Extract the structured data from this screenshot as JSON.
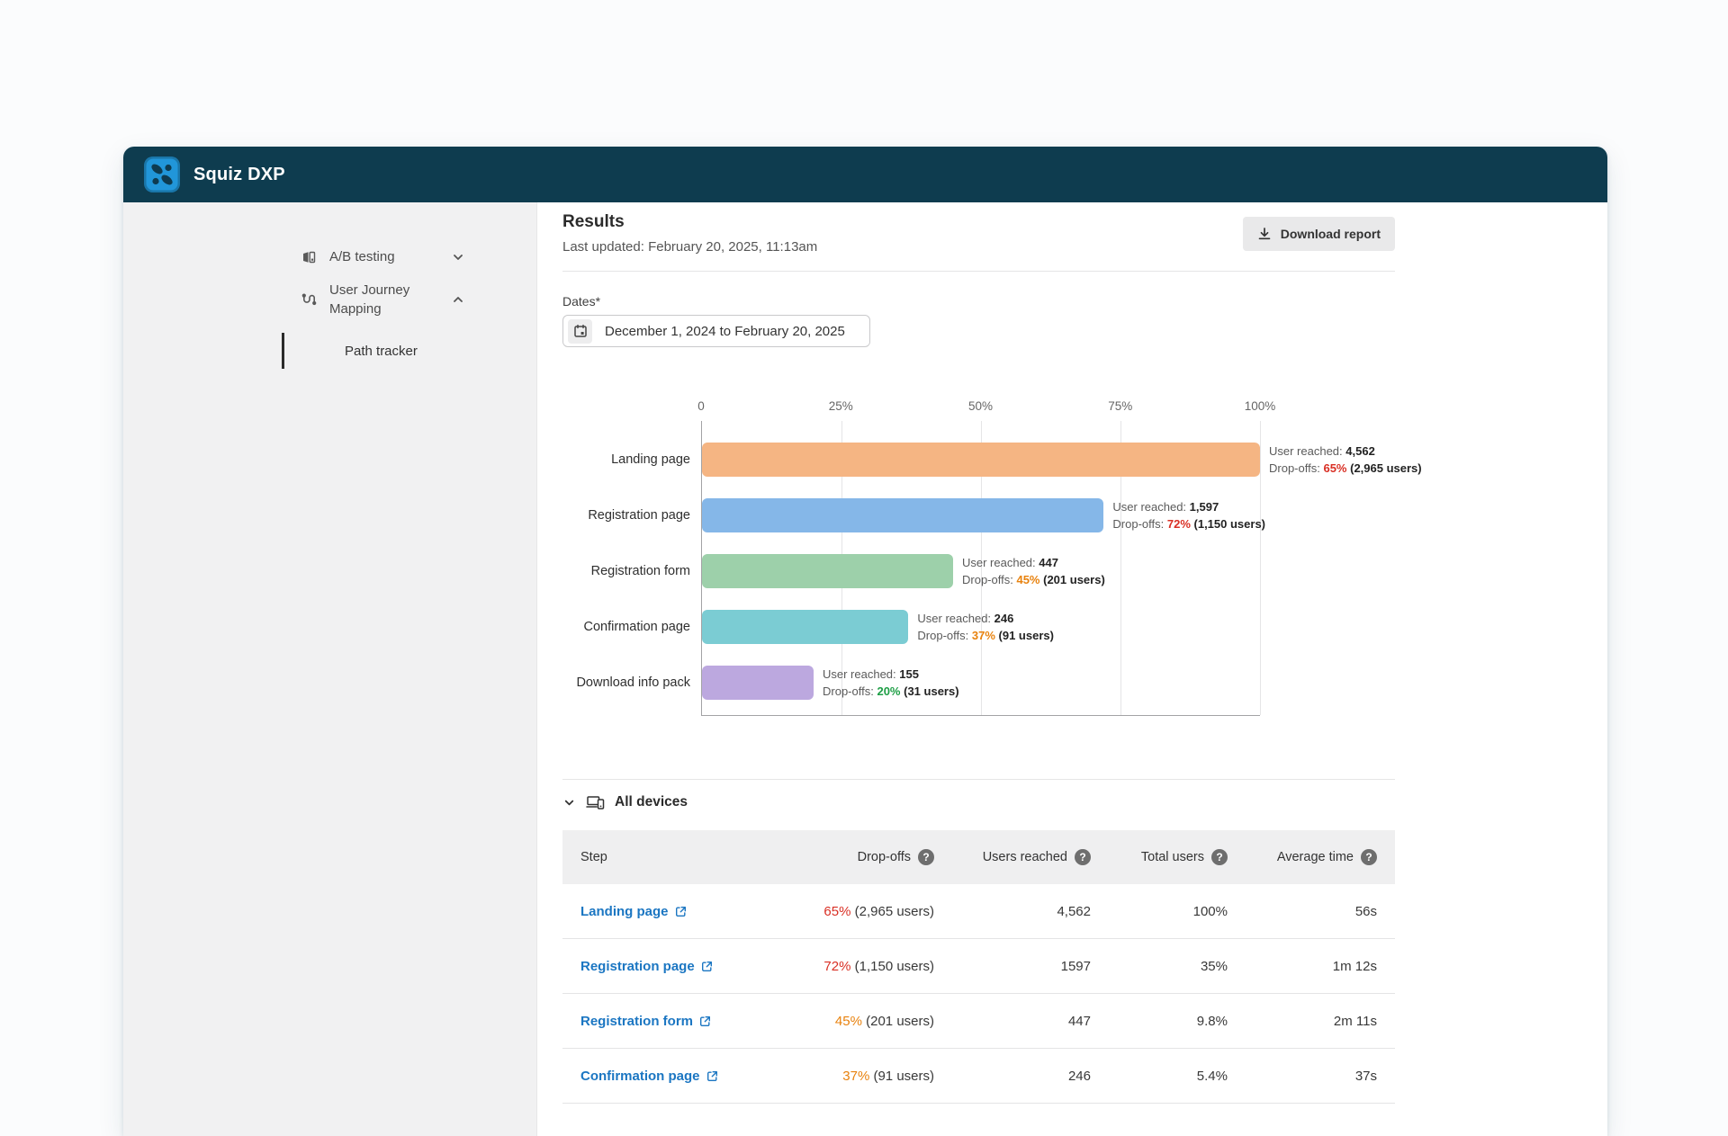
{
  "app": {
    "title": "Squiz DXP"
  },
  "sidebar": {
    "items": [
      {
        "label": "A/B testing",
        "state": "collapsed"
      },
      {
        "label": "User Journey Mapping",
        "state": "expanded"
      }
    ],
    "sub_item": {
      "label": "Path tracker",
      "active": true
    }
  },
  "main": {
    "title": "Results",
    "last_updated": "Last updated: February 20, 2025, 11:13am",
    "download_button": "Download report",
    "dates": {
      "label": "Dates*",
      "value": "December 1, 2024 to February 20, 2025"
    },
    "devices_section": {
      "label": "All devices"
    }
  },
  "chart_data": {
    "type": "bar",
    "orientation": "horizontal",
    "x_ticks": [
      "0",
      "25%",
      "50%",
      "75%",
      "100%"
    ],
    "xlim_pct": [
      0,
      100
    ],
    "grid": "vertical-gridlines",
    "annotation_labels": {
      "user_reached": "User reached:",
      "dropoffs": "Drop-offs:"
    },
    "rows": [
      {
        "category": "Landing page",
        "bar_length_pct": 100,
        "bar_color": "#f5b583",
        "users_reached": "4,562",
        "dropoff_pct": "65%",
        "dropoff_users": "(2,965 users)",
        "pct_color": "#d93025"
      },
      {
        "category": "Registration page",
        "bar_length_pct": 72,
        "bar_color": "#85b7e8",
        "users_reached": "1,597",
        "dropoff_pct": "72%",
        "dropoff_users": "(1,150 users)",
        "pct_color": "#d93025"
      },
      {
        "category": "Registration form",
        "bar_length_pct": 45,
        "bar_color": "#9dd0aa",
        "users_reached": "447",
        "dropoff_pct": "45%",
        "dropoff_users": "(201 users)",
        "pct_color": "#e8820e"
      },
      {
        "category": "Confirmation page",
        "bar_length_pct": 37,
        "bar_color": "#7bccd3",
        "users_reached": "246",
        "dropoff_pct": "37%",
        "dropoff_users": "(91 users)",
        "pct_color": "#e8820e"
      },
      {
        "category": "Download info pack",
        "bar_length_pct": 20,
        "bar_color": "#bca8df",
        "users_reached": "155",
        "dropoff_pct": "20%",
        "dropoff_users": "(31 users)",
        "pct_color": "#1d9e45"
      }
    ]
  },
  "table": {
    "help_glyph": "?",
    "columns": [
      {
        "label": "Step",
        "has_help": false
      },
      {
        "label": "Drop-offs",
        "has_help": true
      },
      {
        "label": "Users reached",
        "has_help": true
      },
      {
        "label": "Total users",
        "has_help": true
      },
      {
        "label": "Average time",
        "has_help": true
      }
    ],
    "rows": [
      {
        "step": "Landing page",
        "dropoff_pct": "65%",
        "dropoff_users": "(2,965 users)",
        "pct_color": "#d93025",
        "users_reached": "4,562",
        "total_users": "100%",
        "average_time": "56s"
      },
      {
        "step": "Registration page",
        "dropoff_pct": "72%",
        "dropoff_users": "(1,150 users)",
        "pct_color": "#d93025",
        "users_reached": "1597",
        "total_users": "35%",
        "average_time": "1m 12s"
      },
      {
        "step": "Registration form",
        "dropoff_pct": "45%",
        "dropoff_users": "(201 users)",
        "pct_color": "#e8820e",
        "users_reached": "447",
        "total_users": "9.8%",
        "average_time": "2m 11s"
      },
      {
        "step": "Confirmation page",
        "dropoff_pct": "37%",
        "dropoff_users": "(91 users)",
        "pct_color": "#e8820e",
        "users_reached": "246",
        "total_users": "5.4%",
        "average_time": "37s"
      }
    ]
  }
}
